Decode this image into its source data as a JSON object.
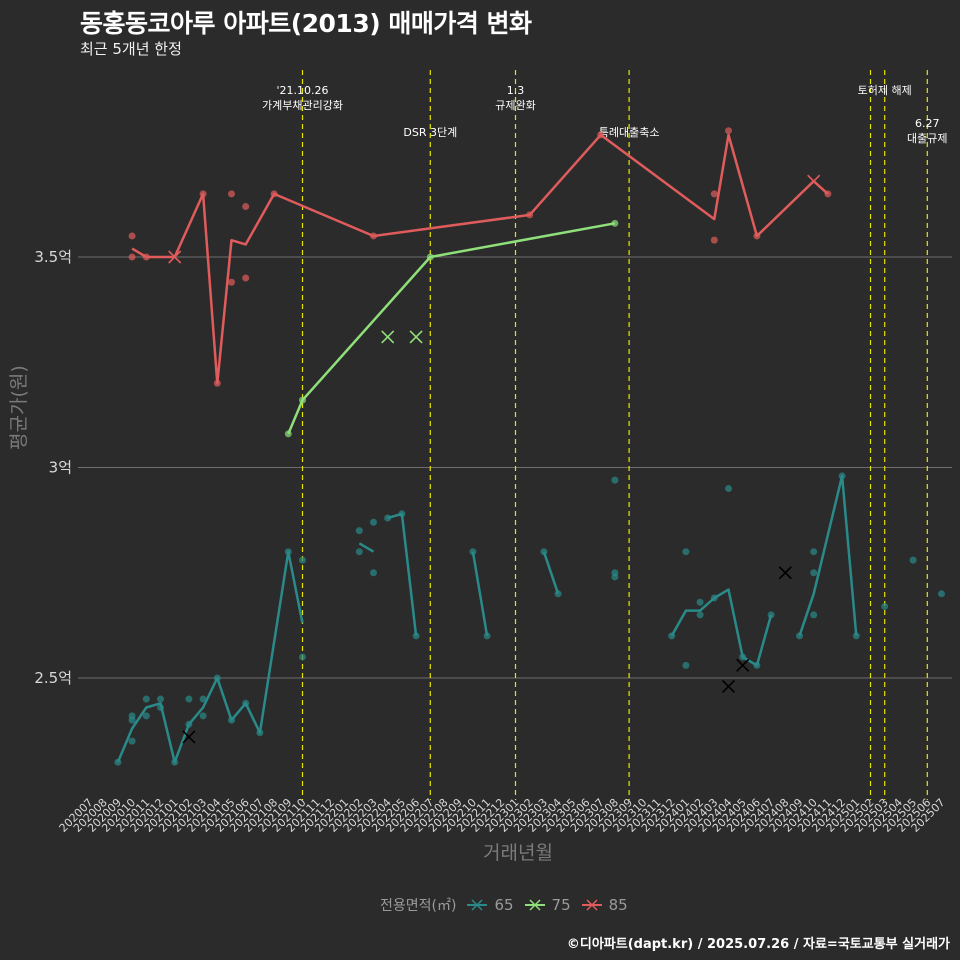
{
  "title": "동홍동코아루 아파트(2013) 매매가격 변화",
  "subtitle": "최근 5개년 한정",
  "caption": "©디아파트(dapt.kr) / 2025.07.26 / 자료=국토교통부 실거래가",
  "colors": {
    "background": "#2b2b2b",
    "grid": "#6e6e6e",
    "event_line": "#e6e600",
    "s65": "#2a8a8a",
    "s75": "#8fe07a",
    "s85": "#e05c5c"
  },
  "chart_data": {
    "type": "line",
    "xlabel": "거래년월",
    "ylabel": "평균가(원)",
    "x_ticks": [
      "202007",
      "202008",
      "202009",
      "202010",
      "202011",
      "202012",
      "202101",
      "202102",
      "202103",
      "202104",
      "202105",
      "202106",
      "202107",
      "202108",
      "202109",
      "202110",
      "202111",
      "202112",
      "202201",
      "202202",
      "202203",
      "202204",
      "202205",
      "202206",
      "202207",
      "202208",
      "202209",
      "202210",
      "202211",
      "202212",
      "202301",
      "202302",
      "202303",
      "202304",
      "202305",
      "202306",
      "202307",
      "202308",
      "202309",
      "202310",
      "202311",
      "202312",
      "202401",
      "202402",
      "202403",
      "202404",
      "202405",
      "202406",
      "202407",
      "202408",
      "202409",
      "202410",
      "202411",
      "202412",
      "202501",
      "202502",
      "202503",
      "202504",
      "202505",
      "202506",
      "202507"
    ],
    "y_ticks": [
      {
        "value": 2.5,
        "label": "2.5억"
      },
      {
        "value": 3.0,
        "label": "3억"
      },
      {
        "value": 3.5,
        "label": "3.5억"
      }
    ],
    "ylim": [
      2.2,
      3.82
    ],
    "legend": {
      "title": "전용면적(㎡)",
      "position": "bottom",
      "entries": [
        "65",
        "75",
        "85"
      ]
    },
    "events": [
      {
        "x": "202110",
        "label": [
          "'21.10.26",
          "가계부채관리강화"
        ],
        "row": 0
      },
      {
        "x": "202207",
        "label": [
          "DSR 3단계"
        ],
        "row": 1
      },
      {
        "x": "202301",
        "label": [
          "1.3",
          "규제완화"
        ],
        "row": 0
      },
      {
        "x": "202309",
        "label": [
          "특례대출축소"
        ],
        "row": 1
      },
      {
        "x": "202502",
        "label": [],
        "row": 0
      },
      {
        "x": "202503",
        "label": [
          "토허제 해제"
        ],
        "row": 0
      },
      {
        "x": "202506",
        "label": [
          "6.27",
          "대출규제"
        ],
        "row": 1
      }
    ],
    "series": [
      {
        "name": "65",
        "color": "#2a8a8a",
        "lines": [
          [
            [
              "202009",
              2.3
            ],
            [
              "202010",
              2.38
            ],
            [
              "202011",
              2.43
            ],
            [
              "202012",
              2.44
            ],
            [
              "202101",
              2.3
            ],
            [
              "202102",
              2.39
            ],
            [
              "202103",
              2.43
            ],
            [
              "202104",
              2.5
            ],
            [
              "202105",
              2.4
            ],
            [
              "202106",
              2.44
            ],
            [
              "202107",
              2.37
            ],
            [
              "202109",
              2.8
            ],
            [
              "202110",
              2.63
            ]
          ],
          [
            [
              "202202",
              2.82
            ],
            [
              "202203",
              2.8
            ]
          ],
          [
            [
              "202204",
              2.88
            ],
            [
              "202205",
              2.89
            ],
            [
              "202206",
              2.6
            ]
          ],
          [
            [
              "202210",
              2.8
            ],
            [
              "202211",
              2.6
            ]
          ],
          [
            [
              "202303",
              2.8
            ],
            [
              "202304",
              2.7
            ]
          ],
          [
            [
              "202312",
              2.6
            ],
            [
              "202401",
              2.66
            ],
            [
              "202402",
              2.66
            ],
            [
              "202403",
              2.69
            ],
            [
              "202404",
              2.71
            ],
            [
              "202405",
              2.55
            ],
            [
              "202406",
              2.53
            ],
            [
              "202407",
              2.65
            ]
          ],
          [
            [
              "202409",
              2.6
            ],
            [
              "202410",
              2.7
            ],
            [
              "202412",
              2.98
            ],
            [
              "202501",
              2.6
            ]
          ]
        ],
        "points": [
          [
            "202009",
            2.3
          ],
          [
            "202010",
            2.35
          ],
          [
            "202010",
            2.4
          ],
          [
            "202010",
            2.41
          ],
          [
            "202011",
            2.41
          ],
          [
            "202011",
            2.45
          ],
          [
            "202012",
            2.43
          ],
          [
            "202012",
            2.45
          ],
          [
            "202101",
            2.3
          ],
          [
            "202102",
            2.45
          ],
          [
            "202102",
            2.39
          ],
          [
            "202103",
            2.45
          ],
          [
            "202103",
            2.41
          ],
          [
            "202104",
            2.5
          ],
          [
            "202105",
            2.4
          ],
          [
            "202106",
            2.44
          ],
          [
            "202107",
            2.37
          ],
          [
            "202109",
            2.8
          ],
          [
            "202110",
            2.78
          ],
          [
            "202110",
            2.55
          ],
          [
            "202202",
            2.85
          ],
          [
            "202202",
            2.8
          ],
          [
            "202203",
            2.87
          ],
          [
            "202203",
            2.75
          ],
          [
            "202204",
            2.88
          ],
          [
            "202205",
            2.89
          ],
          [
            "202206",
            2.6
          ],
          [
            "202210",
            2.8
          ],
          [
            "202211",
            2.6
          ],
          [
            "202303",
            2.8
          ],
          [
            "202304",
            2.7
          ],
          [
            "202308",
            2.97
          ],
          [
            "202308",
            2.75
          ],
          [
            "202308",
            2.74
          ],
          [
            "202312",
            2.6
          ],
          [
            "202401",
            2.8
          ],
          [
            "202401",
            2.53
          ],
          [
            "202402",
            2.68
          ],
          [
            "202402",
            2.65
          ],
          [
            "202403",
            2.69
          ],
          [
            "202404",
            2.95
          ],
          [
            "202405",
            2.55
          ],
          [
            "202406",
            2.53
          ],
          [
            "202407",
            2.65
          ],
          [
            "202409",
            2.6
          ],
          [
            "202410",
            2.8
          ],
          [
            "202410",
            2.75
          ],
          [
            "202410",
            2.65
          ],
          [
            "202412",
            2.98
          ],
          [
            "202501",
            2.6
          ],
          [
            "202503",
            2.67
          ],
          [
            "202505",
            2.78
          ],
          [
            "202507",
            2.7
          ]
        ],
        "crosses": [
          [
            "202102",
            2.36
          ],
          [
            "202404",
            2.48
          ],
          [
            "202405",
            2.53
          ],
          [
            "202408",
            2.75
          ]
        ]
      },
      {
        "name": "75",
        "color": "#8fe07a",
        "lines": [
          [
            [
              "202109",
              3.08
            ],
            [
              "202110",
              3.16
            ],
            [
              "202207",
              3.5
            ],
            [
              "202308",
              3.58
            ]
          ]
        ],
        "points": [
          [
            "202109",
            3.08
          ],
          [
            "202110",
            3.16
          ],
          [
            "202207",
            3.5
          ],
          [
            "202308",
            3.58
          ]
        ],
        "crosses": [
          [
            "202204",
            3.31
          ],
          [
            "202206",
            3.31
          ]
        ]
      },
      {
        "name": "85",
        "color": "#e05c5c",
        "lines": [
          [
            [
              "202010",
              3.52
            ],
            [
              "202011",
              3.5
            ],
            [
              "202101",
              3.5
            ],
            [
              "202103",
              3.65
            ],
            [
              "202104",
              3.2
            ],
            [
              "202105",
              3.54
            ],
            [
              "202106",
              3.53
            ],
            [
              "202108",
              3.65
            ],
            [
              "202203",
              3.55
            ],
            [
              "202302",
              3.6
            ],
            [
              "202307",
              3.79
            ],
            [
              "202403",
              3.59
            ],
            [
              "202404",
              3.79
            ],
            [
              "202406",
              3.55
            ],
            [
              "202410",
              3.68
            ],
            [
              "202411",
              3.65
            ]
          ]
        ],
        "points": [
          [
            "202010",
            3.55
          ],
          [
            "202010",
            3.5
          ],
          [
            "202011",
            3.5
          ],
          [
            "202103",
            3.65
          ],
          [
            "202104",
            3.2
          ],
          [
            "202105",
            3.65
          ],
          [
            "202105",
            3.44
          ],
          [
            "202106",
            3.62
          ],
          [
            "202106",
            3.45
          ],
          [
            "202108",
            3.65
          ],
          [
            "202203",
            3.55
          ],
          [
            "202302",
            3.6
          ],
          [
            "202307",
            3.79
          ],
          [
            "202403",
            3.65
          ],
          [
            "202403",
            3.54
          ],
          [
            "202404",
            3.8
          ],
          [
            "202406",
            3.55
          ],
          [
            "202411",
            3.65
          ]
        ],
        "crosses": [
          [
            "202101",
            3.5
          ],
          [
            "202410",
            3.68
          ]
        ]
      }
    ]
  }
}
